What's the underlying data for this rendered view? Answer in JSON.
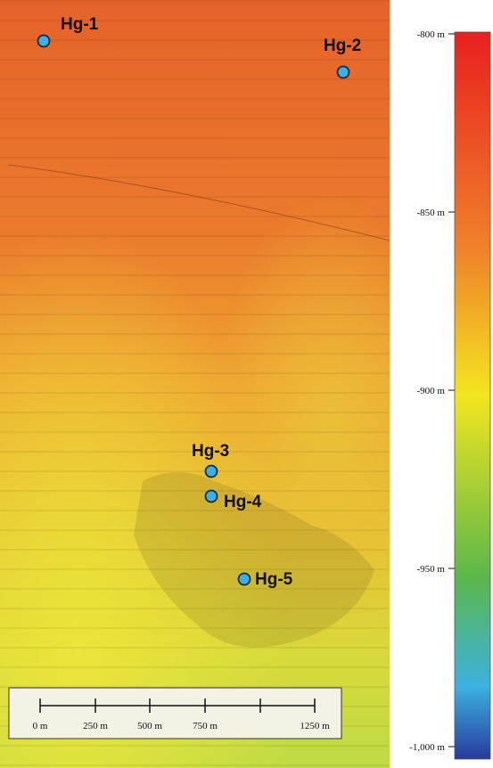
{
  "stations": [
    {
      "label": "Hg-1"
    },
    {
      "label": "Hg-2"
    },
    {
      "label": "Hg-3"
    },
    {
      "label": "Hg-4"
    },
    {
      "label": "Hg-5"
    }
  ],
  "scale_bar": {
    "labels": [
      "0 m",
      "250 m",
      "500 m",
      "750 m",
      "1250 m"
    ]
  },
  "colorbar": {
    "ticks": [
      "-800 m",
      "-850 m",
      "-900 m",
      "-950 m",
      "-1,000 m"
    ]
  }
}
